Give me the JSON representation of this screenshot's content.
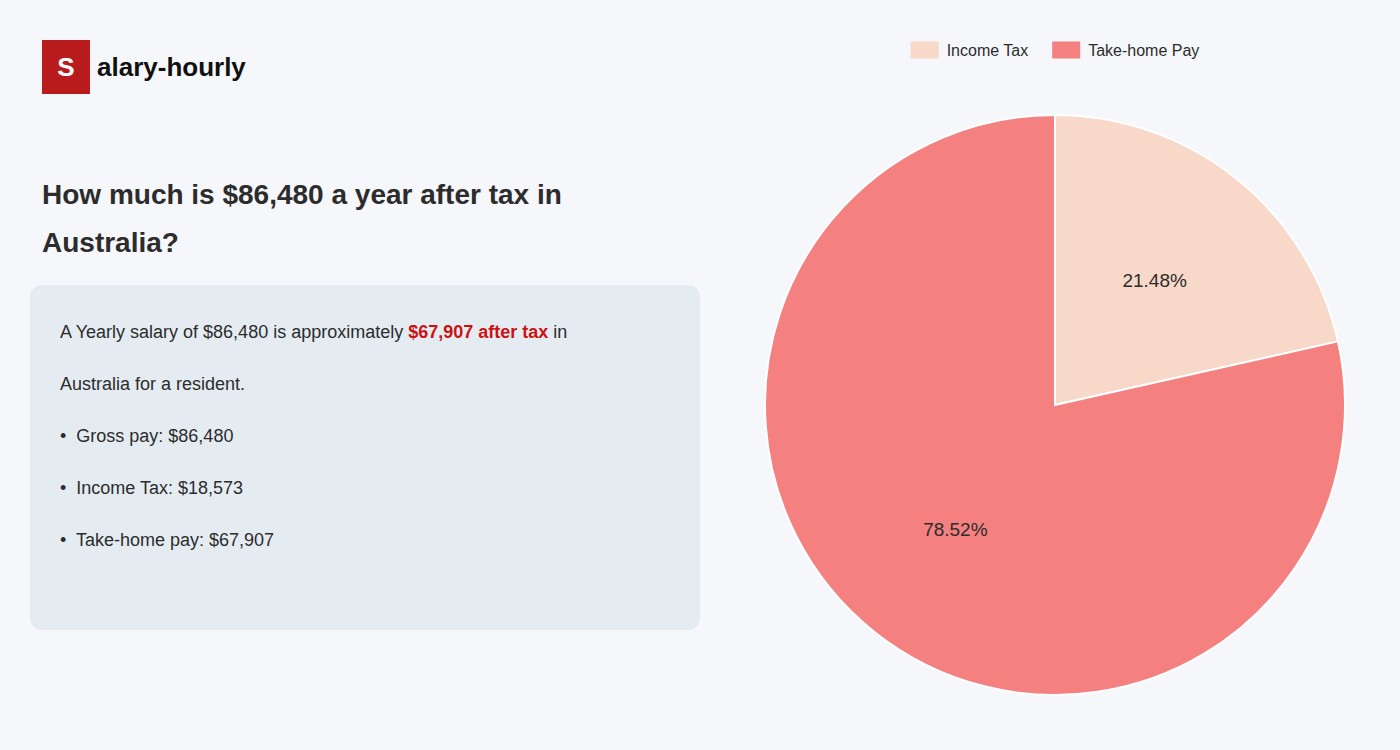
{
  "chart_data": {
    "type": "pie",
    "title": [
      "How much is $86,480 a year after tax in",
      "Australia?"
    ],
    "logo": {
      "text": [
        "S",
        "alary-hourly"
      ],
      "color": "#b81c1c"
    },
    "annotations": [
      [
        {
          "text": "A Yearly salary of $86,480 is approximately "
        },
        {
          "text": "$67,907 after tax",
          "color": "#cc1111"
        },
        {
          "text": " in"
        }
      ],
      [
        {
          "text": "Australia for a resident."
        }
      ],
      [
        {
          "text": "•  Gross pay: $86,480"
        }
      ],
      [
        {
          "text": "•  Income Tax: $18,573"
        }
      ],
      [
        {
          "text": "•  Take-home pay: $67,907"
        }
      ]
    ],
    "categories": [
      "Income Tax",
      "Take-home Pay"
    ],
    "values": [
      21.48,
      78.52
    ],
    "value_labels": [
      "21.48%",
      "78.52%"
    ],
    "colors": [
      "#f8d8c8",
      "#f58080"
    ],
    "data_labels": true,
    "legend": "top"
  }
}
